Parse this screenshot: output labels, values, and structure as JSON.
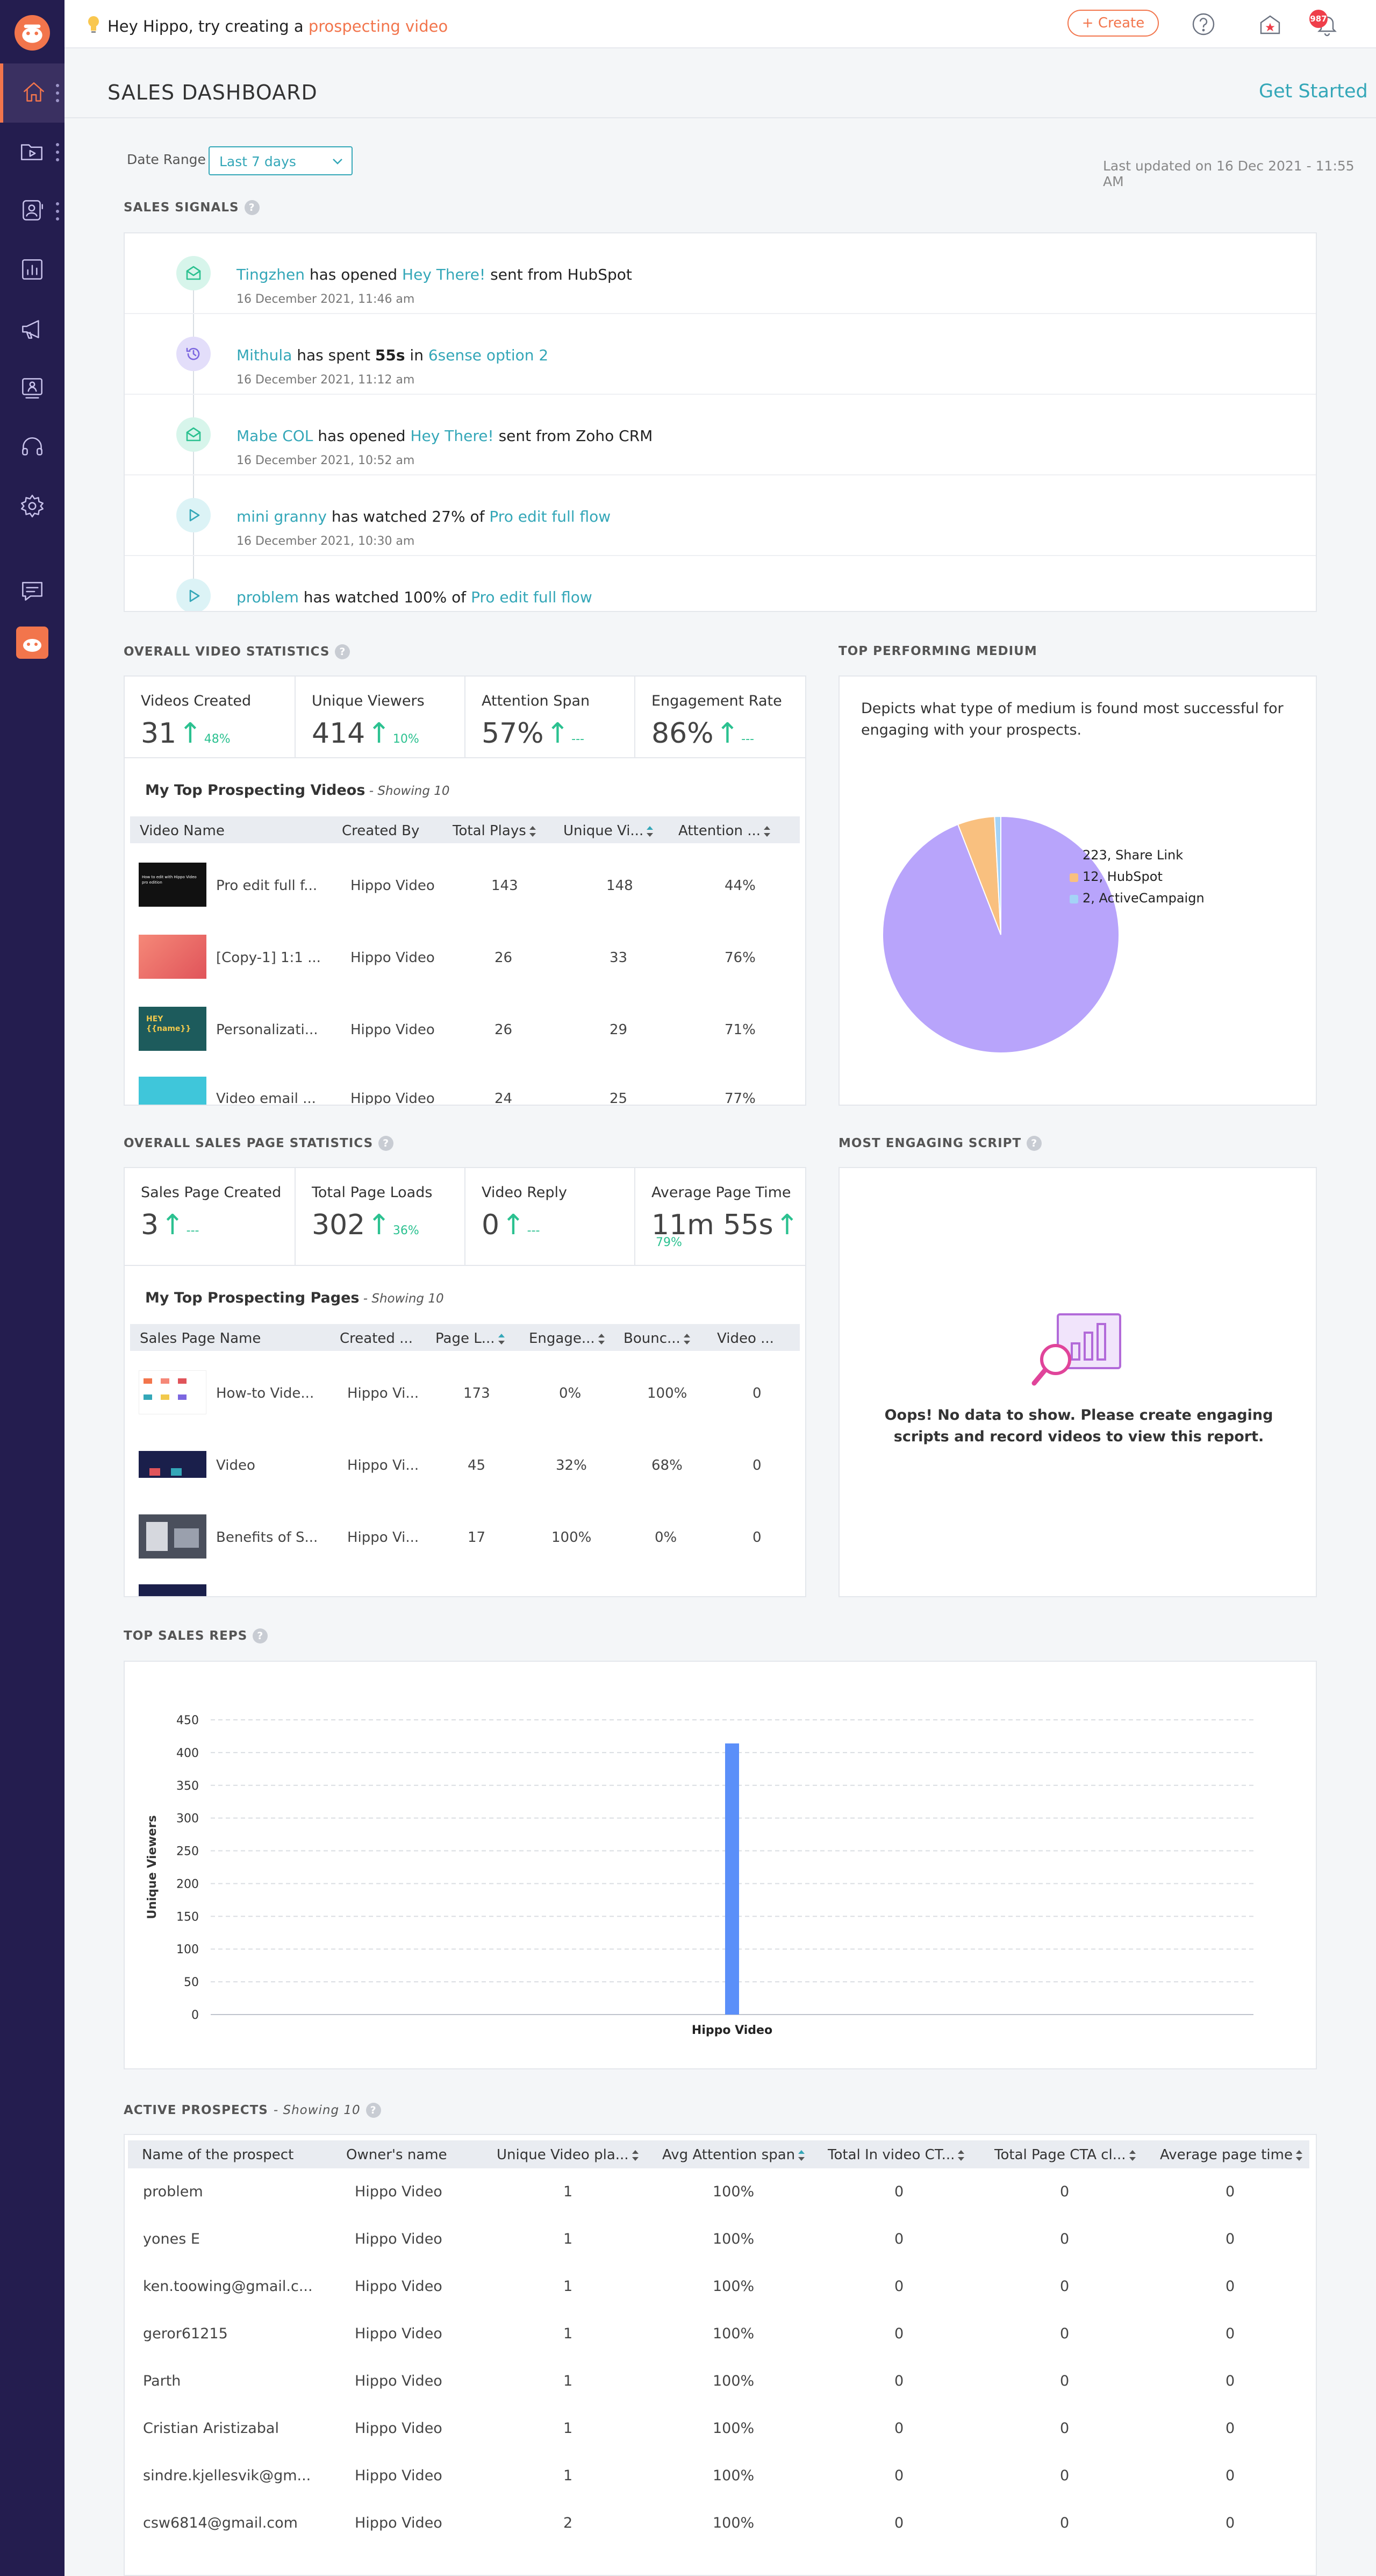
{
  "topbar": {
    "hint_prefix": "Hey Hippo, try creating a ",
    "hint_link": "prospecting video",
    "create_label": "+ Create",
    "notification_count": "987"
  },
  "sidebar": {
    "items": [
      "home",
      "videos",
      "contacts",
      "reports",
      "campaigns",
      "pages",
      "support",
      "settings",
      "feedback",
      "profile"
    ]
  },
  "header": {
    "title": "SALES DASHBOARD",
    "get_started": "Get Started",
    "date_range_label": "Date Range",
    "date_range_value": "Last 7 days",
    "last_updated": "Last updated on 16 Dec 2021 - 11:55 AM"
  },
  "sales_signals": {
    "title": "SALES SIGNALS",
    "items": [
      {
        "type": "email",
        "who": "Tingzhen",
        "mid": " has opened ",
        "target": "Hey There!",
        "tail": " sent from HubSpot",
        "date": "16 December 2021, 11:46 am"
      },
      {
        "type": "time",
        "who": "Mithula",
        "mid": " has spent ",
        "bold": "55s",
        "mid2": " in ",
        "target": "6sense option 2",
        "date": "16 December 2021, 11:12 am"
      },
      {
        "type": "email",
        "who": "Mabe COL",
        "mid": " has opened ",
        "target": "Hey There!",
        "tail": " sent from Zoho CRM",
        "date": "16 December 2021, 10:52 am"
      },
      {
        "type": "play",
        "who": "mini granny",
        "mid": " has watched 27% of ",
        "target": "Pro edit full flow",
        "date": "16 December 2021, 10:30 am"
      },
      {
        "type": "play",
        "who": "problem",
        "mid": " has watched 100% of ",
        "target": "Pro edit full flow",
        "date": ""
      }
    ]
  },
  "video_stats": {
    "title": "OVERALL VIDEO STATISTICS",
    "stats": [
      {
        "label": "Videos Created",
        "value": "31",
        "change": "48%"
      },
      {
        "label": "Unique Viewers",
        "value": "414",
        "change": "10%"
      },
      {
        "label": "Attention Span",
        "value": "57%",
        "change": "---"
      },
      {
        "label": "Engagement Rate",
        "value": "86%",
        "change": "---"
      }
    ],
    "table_title": "My Top Prospecting Videos",
    "table_note": "Showing 10",
    "columns": [
      "Video Name",
      "Created By",
      "Total Plays",
      "Unique Vi...",
      "Attention ..."
    ],
    "rows": [
      {
        "name": "Pro edit full f...",
        "by": "Hippo Video",
        "plays": "143",
        "unique": "148",
        "attention": "44%",
        "thumb_text": "How to edit with Hippo Video pro edition"
      },
      {
        "name": "[Copy-1] 1:1 ...",
        "by": "Hippo Video",
        "plays": "26",
        "unique": "33",
        "attention": "76%",
        "thumb_text": ""
      },
      {
        "name": "Personalizati...",
        "by": "Hippo Video",
        "plays": "26",
        "unique": "29",
        "attention": "71%",
        "thumb_text": "HEY {{name}}"
      },
      {
        "name": "Video email ...",
        "by": "Hippo Video",
        "plays": "24",
        "unique": "25",
        "attention": "77%",
        "thumb_text": ""
      }
    ]
  },
  "top_medium": {
    "title": "TOP PERFORMING MEDIUM",
    "description": "Depicts what type of medium is found most successful for engaging with your prospects."
  },
  "chart_data": [
    {
      "type": "pie",
      "title": "",
      "categories": [
        "Share Link",
        "HubSpot",
        "ActiveCampaign"
      ],
      "values": [
        223,
        12,
        2
      ],
      "labels": [
        "223, Share Link",
        "12, HubSpot",
        "2, ActiveCampaign"
      ],
      "colors": [
        "#b8a4fb",
        "#f9c07f",
        "#a4d3f6"
      ],
      "legend": "right"
    },
    {
      "type": "bar",
      "title": "",
      "categories": [
        "Hippo Video"
      ],
      "values": [
        414
      ],
      "xlabel": "",
      "ylabel": "Unique Viewers",
      "ylim": [
        0,
        450
      ],
      "yticks": [
        "0",
        "50",
        "100",
        "150",
        "200",
        "250",
        "300",
        "350",
        "400",
        "450"
      ],
      "color": "#5b8ff9",
      "grid": true
    }
  ],
  "page_stats": {
    "title": "OVERALL SALES PAGE STATISTICS",
    "stats": [
      {
        "label": "Sales Page Created",
        "value": "3",
        "change": "---"
      },
      {
        "label": "Total Page Loads",
        "value": "302",
        "change": "36%"
      },
      {
        "label": "Video Reply",
        "value": "0",
        "change": "---"
      },
      {
        "label": "Average Page Time",
        "value": "11m 55s",
        "change": "79%"
      }
    ],
    "table_title": "My Top Prospecting Pages",
    "table_note": "Showing 10",
    "columns": [
      "Sales Page Name",
      "Created ...",
      "Page L...",
      "Engage...",
      "Bounc...",
      "Video ..."
    ],
    "rows": [
      {
        "name": "How-to Vide...",
        "by": "Hippo Vi...",
        "loads": "173",
        "engage": "0%",
        "bounce": "100%",
        "video": "0"
      },
      {
        "name": "Video",
        "by": "Hippo Vi...",
        "loads": "45",
        "engage": "32%",
        "bounce": "68%",
        "video": "0"
      },
      {
        "name": "Benefits of S...",
        "by": "Hippo Vi...",
        "loads": "17",
        "engage": "100%",
        "bounce": "0%",
        "video": "0"
      }
    ]
  },
  "engaging_script": {
    "title": "MOST ENGAGING SCRIPT",
    "empty_text": "Oops! No data to show. Please create engaging scripts and record videos to view this report."
  },
  "top_reps": {
    "title": "TOP SALES REPS"
  },
  "prospects": {
    "title": "ACTIVE PROSPECTS",
    "note": "Showing 10",
    "columns": [
      "Name of the prospect",
      "Owner's name",
      "Unique Video pla...",
      "Avg Attention span",
      "Total In video CT...",
      "Total Page CTA cl...",
      "Average page time"
    ],
    "rows": [
      {
        "name": "problem",
        "owner": "Hippo Video",
        "plays": "1",
        "attention": "100%",
        "cta": "0",
        "page_cta": "0",
        "time": "0"
      },
      {
        "name": "yones E",
        "owner": "Hippo Video",
        "plays": "1",
        "attention": "100%",
        "cta": "0",
        "page_cta": "0",
        "time": "0"
      },
      {
        "name": "ken.toowing@gmail.c...",
        "owner": "Hippo Video",
        "plays": "1",
        "attention": "100%",
        "cta": "0",
        "page_cta": "0",
        "time": "0"
      },
      {
        "name": "geror61215",
        "owner": "Hippo Video",
        "plays": "1",
        "attention": "100%",
        "cta": "0",
        "page_cta": "0",
        "time": "0"
      },
      {
        "name": "Parth",
        "owner": "Hippo Video",
        "plays": "1",
        "attention": "100%",
        "cta": "0",
        "page_cta": "0",
        "time": "0"
      },
      {
        "name": "Cristian Aristizabal",
        "owner": "Hippo Video",
        "plays": "1",
        "attention": "100%",
        "cta": "0",
        "page_cta": "0",
        "time": "0"
      },
      {
        "name": "sindre.kjellesvik@gm...",
        "owner": "Hippo Video",
        "plays": "1",
        "attention": "100%",
        "cta": "0",
        "page_cta": "0",
        "time": "0"
      },
      {
        "name": "csw6814@gmail.com",
        "owner": "Hippo Video",
        "plays": "2",
        "attention": "100%",
        "cta": "0",
        "page_cta": "0",
        "time": "0"
      }
    ]
  },
  "colors": {
    "accent": "#34a7b8",
    "brand": "#f2754c",
    "sidebar": "#241d4f",
    "positive": "#2bc190"
  }
}
